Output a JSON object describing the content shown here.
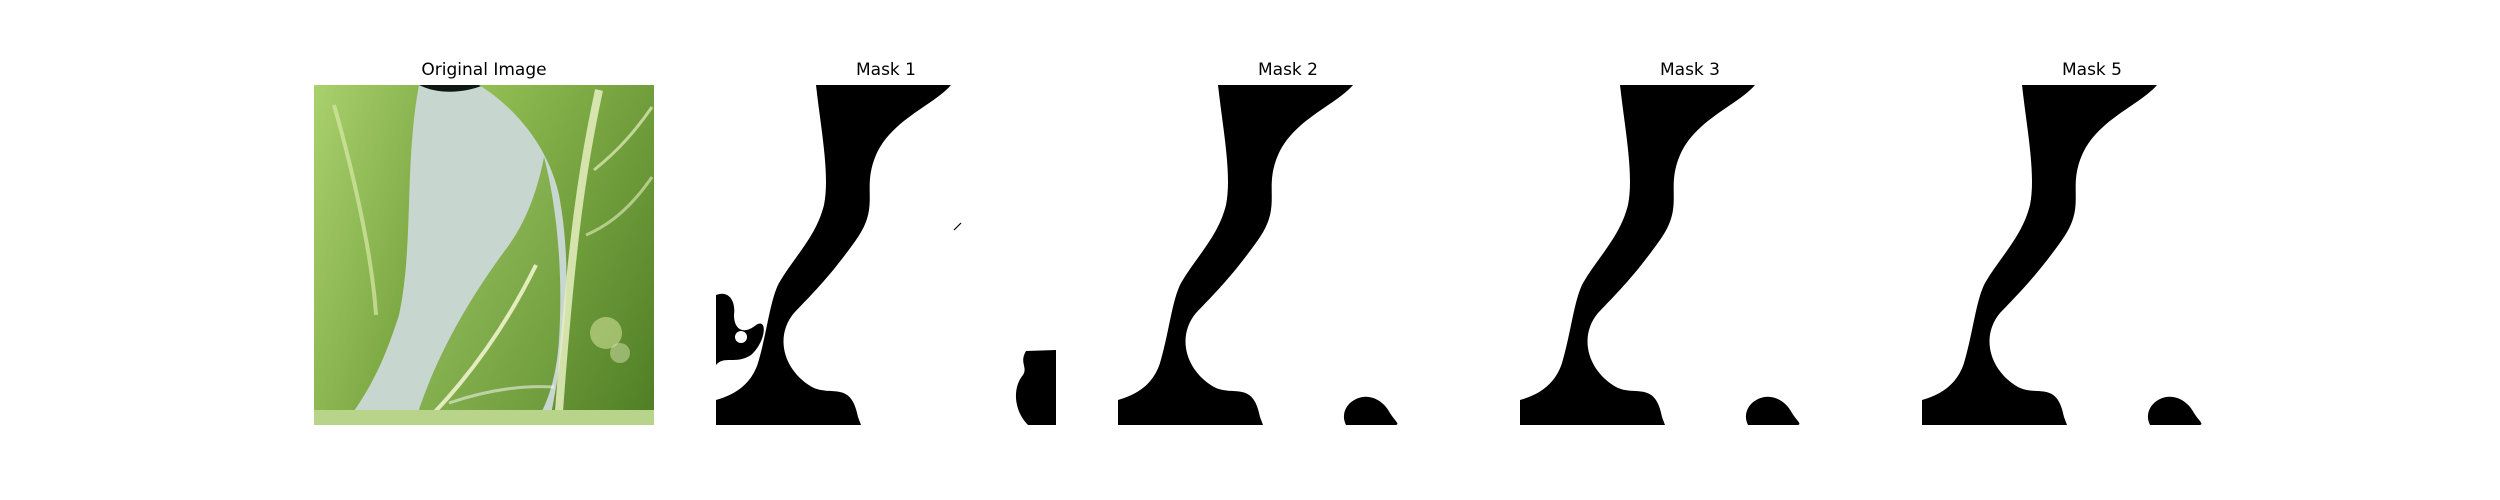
{
  "panels": [
    {
      "title": "Original Image",
      "kind": "photo"
    },
    {
      "title": "Mask 1",
      "kind": "mask"
    },
    {
      "title": "Mask 2",
      "kind": "mask"
    },
    {
      "title": "Mask 3",
      "kind": "mask"
    },
    {
      "title": "Mask 5",
      "kind": "mask"
    }
  ],
  "colors": {
    "background": "#ffffff",
    "mask_foreground": "#ffffff",
    "mask_background": "#000000",
    "leaf_light": "#9fc76a",
    "leaf_dark": "#5e8a2d",
    "leaf_vein": "#e9f1c7",
    "backdrop": "#c8d6d0"
  }
}
